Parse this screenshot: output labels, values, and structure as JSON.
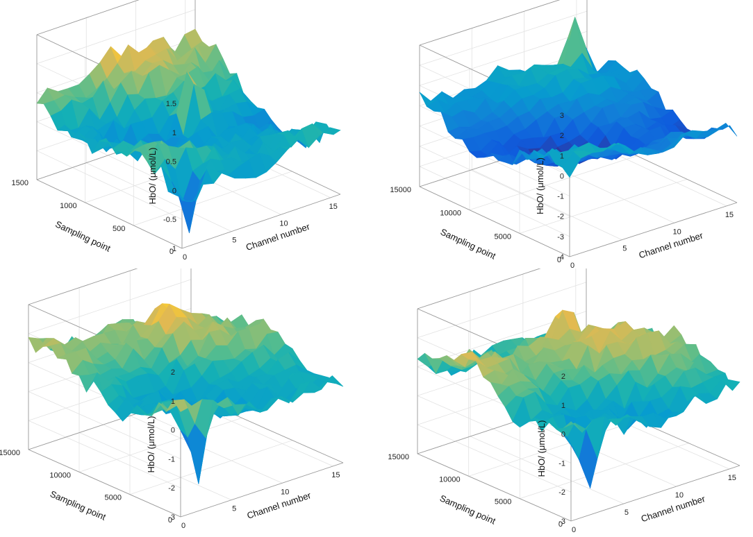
{
  "chart_data": [
    {
      "type": "surface",
      "panel": "top-left",
      "xlabel": "Channel number",
      "ylabel": "Sampling point",
      "zlabel": "HbO/  (μmol/L)",
      "xlim": [
        0,
        16
      ],
      "ylim": [
        0,
        1500
      ],
      "zlim": [
        -1,
        1.5
      ],
      "xticks": [
        "0",
        "5",
        "10",
        "15"
      ],
      "yticks": [
        "0",
        "500",
        "1000",
        "1500"
      ],
      "zticks": [
        "-1",
        "-0.5",
        "0",
        "0.5",
        "1",
        "1.5"
      ],
      "peak": {
        "channel": 10,
        "sampling_point": 900,
        "value": 1.1
      },
      "min": {
        "channel": 2,
        "sampling_point": 150,
        "value": -1.0
      }
    },
    {
      "type": "surface",
      "panel": "top-right",
      "xlabel": "Channel number",
      "ylabel": "Sampling point",
      "zlabel": "HbO/  (μmol/L)",
      "xlim": [
        0,
        16
      ],
      "ylim": [
        0,
        15000
      ],
      "zlim": [
        -4,
        3
      ],
      "xticks": [
        "0",
        "5",
        "10",
        "15"
      ],
      "yticks": [
        "0",
        "5000",
        "10000",
        "15000"
      ],
      "zticks": [
        "-4",
        "-3",
        "-2",
        "-1",
        "0",
        "1",
        "2",
        "3"
      ],
      "peak": {
        "channel": 13,
        "sampling_point": 13000,
        "value": 3.0
      }
    },
    {
      "type": "surface",
      "panel": "bottom-left",
      "xlabel": "Channel number",
      "ylabel": "Sampling point",
      "zlabel": "HbO/  (μmol/L)",
      "xlim": [
        0,
        16
      ],
      "ylim": [
        0,
        15000
      ],
      "zlim": [
        -3,
        2
      ],
      "xticks": [
        "0",
        "5",
        "10",
        "15"
      ],
      "yticks": [
        "0",
        "5000",
        "10000",
        "15000"
      ],
      "zticks": [
        "-3",
        "-2",
        "-1",
        "0",
        "1",
        "2"
      ],
      "peak": {
        "channel": 10,
        "sampling_point": 11000,
        "value": 1.9
      },
      "min": {
        "channel": 3,
        "sampling_point": 1500,
        "value": -2.6
      }
    },
    {
      "type": "surface",
      "panel": "bottom-right",
      "xlabel": "Channel number",
      "ylabel": "Sampling point",
      "zlabel": "HbO/  (μmol/L)",
      "xlim": [
        0,
        16
      ],
      "ylim": [
        0,
        15000
      ],
      "zlim": [
        -3,
        2
      ],
      "xticks": [
        "0",
        "5",
        "10",
        "15"
      ],
      "yticks": [
        "0",
        "5000",
        "10000",
        "15000"
      ],
      "zticks": [
        "-3",
        "-2",
        "-1",
        "0",
        "1",
        "2"
      ],
      "peak": {
        "channel": 10,
        "sampling_point": 11000,
        "value": 1.8
      },
      "min": {
        "channel": 3,
        "sampling_point": 1500,
        "value": -2.6
      }
    }
  ]
}
